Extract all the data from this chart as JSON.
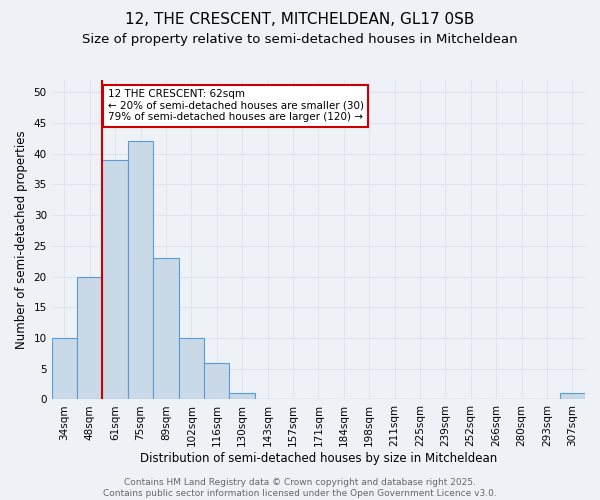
{
  "title": "12, THE CRESCENT, MITCHELDEAN, GL17 0SB",
  "subtitle": "Size of property relative to semi-detached houses in Mitcheldean",
  "xlabel": "Distribution of semi-detached houses by size in Mitcheldean",
  "ylabel": "Number of semi-detached properties",
  "categories": [
    "34sqm",
    "48sqm",
    "61sqm",
    "75sqm",
    "89sqm",
    "102sqm",
    "116sqm",
    "130sqm",
    "143sqm",
    "157sqm",
    "171sqm",
    "184sqm",
    "198sqm",
    "211sqm",
    "225sqm",
    "239sqm",
    "252sqm",
    "266sqm",
    "280sqm",
    "293sqm",
    "307sqm"
  ],
  "values": [
    10,
    20,
    39,
    42,
    23,
    10,
    6,
    1,
    0,
    0,
    0,
    0,
    0,
    0,
    0,
    0,
    0,
    0,
    0,
    0,
    1
  ],
  "bar_color": "#c9d9e8",
  "bar_edge_color": "#5b9bd5",
  "property_line_index": 2,
  "annotation_text": "12 THE CRESCENT: 62sqm\n← 20% of semi-detached houses are smaller (30)\n79% of semi-detached houses are larger (120) →",
  "annotation_box_color": "#ffffff",
  "annotation_box_edge": "#cc0000",
  "vline_color": "#cc0000",
  "footer_text": "Contains HM Land Registry data © Crown copyright and database right 2025.\nContains public sector information licensed under the Open Government Licence v3.0.",
  "ylim": [
    0,
    52
  ],
  "yticks": [
    0,
    5,
    10,
    15,
    20,
    25,
    30,
    35,
    40,
    45,
    50
  ],
  "grid_color": "#dce6f0",
  "background_color": "#eef2f7",
  "title_fontsize": 11,
  "subtitle_fontsize": 9.5,
  "axis_label_fontsize": 8.5,
  "tick_fontsize": 7.5,
  "annotation_fontsize": 7.5,
  "footer_fontsize": 6.5
}
